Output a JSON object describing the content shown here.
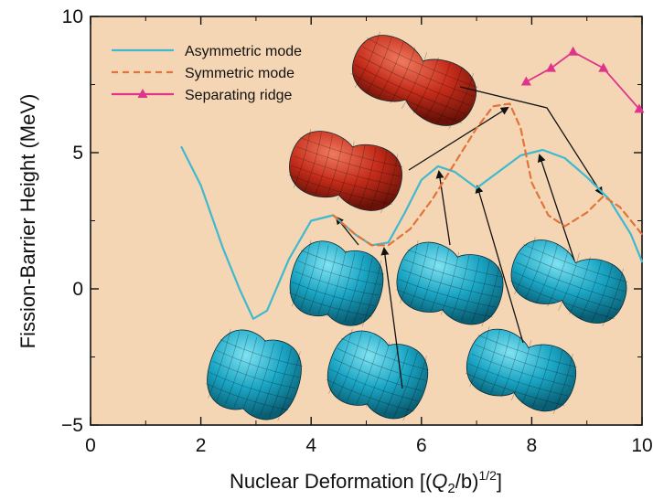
{
  "chart_data": {
    "type": "line",
    "xlabel": "Nuclear Deformation [(Q₂/b)¹ᐟ²]",
    "xlabel_parts": {
      "prefix": "Nuclear Deformation [(",
      "q": "Q",
      "sub": "2",
      "mid": "/b)",
      "sup": "1/2",
      "suffix": "]"
    },
    "ylabel": "Fission-Barrier Height (MeV)",
    "xlim": [
      0,
      10
    ],
    "ylim": [
      -5,
      10
    ],
    "xticks": [
      0,
      2,
      4,
      6,
      8,
      10
    ],
    "yticks": [
      -5,
      0,
      5,
      10
    ],
    "ytick_labels": [
      "−5",
      "0",
      "5",
      "10"
    ],
    "legend_position": "top-left",
    "background_color": "#f5d6b4",
    "series": [
      {
        "name": "Asymmetric mode",
        "style": "solid",
        "color": "#3fb9cf",
        "x": [
          1.65,
          2.0,
          2.4,
          2.7,
          2.95,
          3.2,
          3.6,
          4.0,
          4.4,
          4.8,
          5.1,
          5.4,
          5.7,
          6.0,
          6.3,
          6.6,
          7.0,
          7.4,
          7.8,
          8.2,
          8.6,
          9.0,
          9.4,
          9.8,
          10.0
        ],
        "y": [
          5.2,
          3.8,
          1.5,
          0.0,
          -1.1,
          -0.8,
          1.1,
          2.5,
          2.7,
          2.0,
          1.6,
          1.7,
          2.8,
          4.0,
          4.5,
          4.3,
          3.7,
          4.3,
          4.9,
          5.1,
          4.8,
          4.1,
          3.3,
          2.0,
          1.0
        ]
      },
      {
        "name": "Symmetric mode",
        "style": "dashed",
        "color": "#e0743a",
        "x": [
          4.4,
          4.8,
          5.1,
          5.4,
          5.8,
          6.2,
          6.6,
          7.0,
          7.3,
          7.6,
          7.8,
          8.0,
          8.3,
          8.6,
          9.0,
          9.3,
          9.6,
          10.0
        ],
        "y": [
          2.7,
          2.0,
          1.6,
          1.6,
          2.2,
          3.3,
          4.6,
          5.9,
          6.7,
          6.8,
          5.9,
          3.9,
          2.7,
          2.3,
          2.8,
          3.4,
          3.0,
          2.0
        ]
      },
      {
        "name": "Separating ridge",
        "style": "solid-markers",
        "color": "#e0348c",
        "x": [
          7.9,
          8.35,
          8.75,
          9.3,
          9.95
        ],
        "y": [
          7.6,
          8.1,
          8.7,
          8.1,
          6.6
        ]
      }
    ]
  }
}
